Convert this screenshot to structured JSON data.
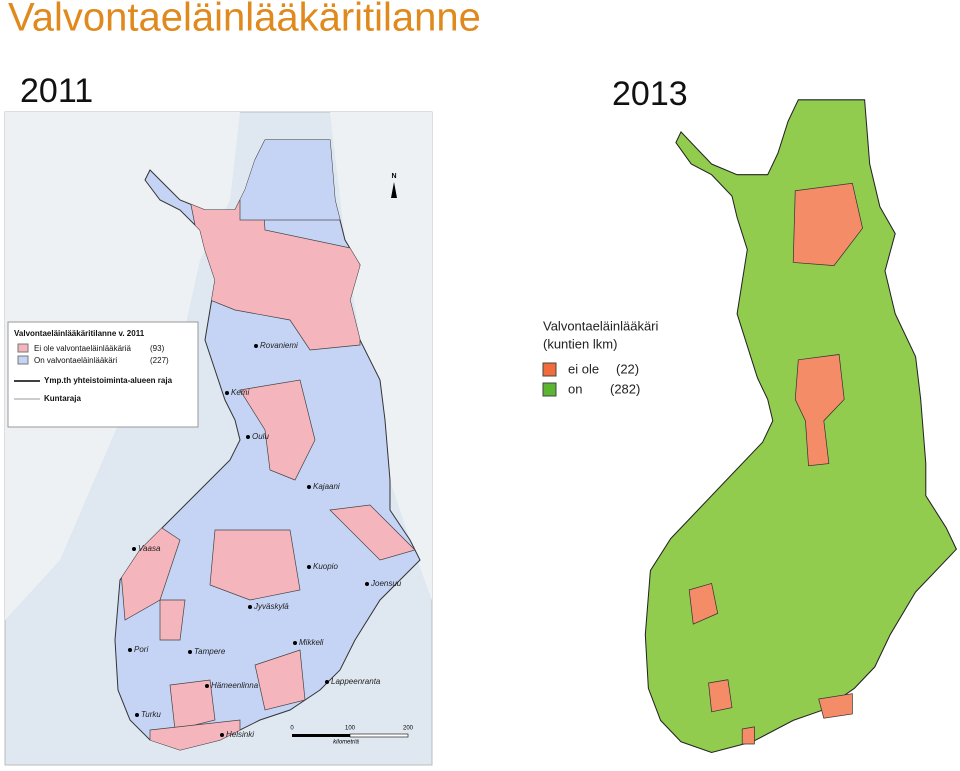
{
  "title": "Valvontaeläinlääkäritilanne",
  "map_2011": {
    "year": "2011",
    "legend": {
      "title": "Valvontaeläinlääkäritilanne v. 2011",
      "items": [
        {
          "label": "Ei ole valvontaeläinlääkäriä",
          "count": "(93)"
        },
        {
          "label": "On valvontaeläinlääkäri",
          "count": "(227)"
        },
        {
          "label": "Ymp.th yhteistoiminta-alueen raja"
        },
        {
          "label": "Kuntaraja"
        }
      ]
    },
    "cities": [
      "Rovaniemi",
      "Kemi",
      "Oulu",
      "Kajaani",
      "Vaasa",
      "Kuopio",
      "Joensuu",
      "Jyväskylä",
      "Pori",
      "Tampere",
      "Mikkeli",
      "Hämeenlinna",
      "Lappeenranta",
      "Turku",
      "Helsinki"
    ],
    "north": "N",
    "scale": {
      "ticks": [
        "0",
        "100",
        "200"
      ],
      "unit": "kilometriä"
    }
  },
  "map_2013": {
    "year": "2013",
    "legend": {
      "title": "Valvontaeläinlääkäri",
      "subtitle": "(kuntien lkm)",
      "items": [
        {
          "label": "ei ole",
          "count": "(22)"
        },
        {
          "label": "on",
          "count": "(282)"
        }
      ]
    }
  }
}
